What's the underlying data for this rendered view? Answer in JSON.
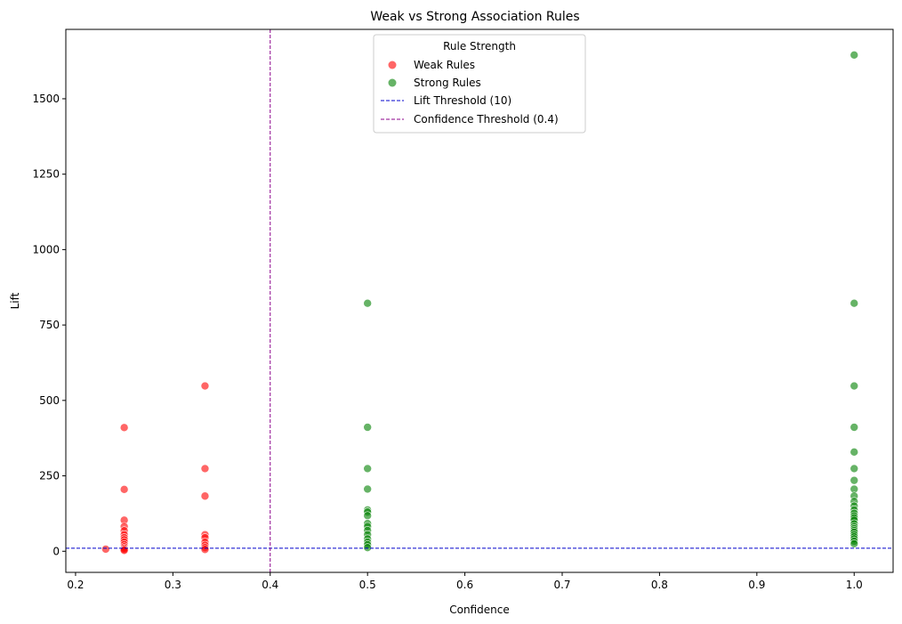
{
  "chart_data": {
    "type": "scatter",
    "title": "Weak vs Strong Association Rules",
    "xlabel": "Confidence",
    "ylabel": "Lift",
    "xlim": [
      0.19,
      1.04
    ],
    "ylim": [
      -70,
      1730
    ],
    "xticks": [
      0.2,
      0.3,
      0.4,
      0.5,
      0.6,
      0.7,
      0.8,
      0.9,
      1.0
    ],
    "xtick_labels": [
      "0.2",
      "0.3",
      "0.4",
      "0.5",
      "0.6",
      "0.7",
      "0.8",
      "0.9",
      "1.0"
    ],
    "yticks": [
      0,
      250,
      500,
      750,
      1000,
      1250,
      1500
    ],
    "ytick_labels": [
      "0",
      "250",
      "500",
      "750",
      "1000",
      "1250",
      "1500"
    ],
    "grid": false,
    "legend": {
      "title": "Rule Strength",
      "placement": "upper-center",
      "entries": [
        "Weak Rules",
        "Strong Rules",
        "Lift Threshold (10)",
        "Confidence Threshold (0.4)"
      ]
    },
    "series": [
      {
        "name": "Weak Rules",
        "color": "#ff0000",
        "points": [
          [
            0.231,
            7
          ],
          [
            0.25,
            410
          ],
          [
            0.25,
            205
          ],
          [
            0.25,
            103
          ],
          [
            0.25,
            82
          ],
          [
            0.25,
            68
          ],
          [
            0.25,
            55
          ],
          [
            0.25,
            45
          ],
          [
            0.25,
            38
          ],
          [
            0.25,
            30
          ],
          [
            0.25,
            22
          ],
          [
            0.25,
            15
          ],
          [
            0.25,
            10
          ],
          [
            0.25,
            6
          ],
          [
            0.25,
            3
          ],
          [
            0.333,
            548
          ],
          [
            0.333,
            274
          ],
          [
            0.333,
            183
          ],
          [
            0.333,
            55
          ],
          [
            0.333,
            45
          ],
          [
            0.333,
            30
          ],
          [
            0.333,
            20
          ],
          [
            0.333,
            12
          ],
          [
            0.333,
            6
          ]
        ]
      },
      {
        "name": "Strong Rules",
        "color": "#008000",
        "points": [
          [
            0.5,
            822
          ],
          [
            0.5,
            411
          ],
          [
            0.5,
            274
          ],
          [
            0.5,
            206
          ],
          [
            0.5,
            137
          ],
          [
            0.5,
            130
          ],
          [
            0.5,
            118
          ],
          [
            0.5,
            92
          ],
          [
            0.5,
            82
          ],
          [
            0.5,
            69
          ],
          [
            0.5,
            55
          ],
          [
            0.5,
            41
          ],
          [
            0.5,
            30
          ],
          [
            0.5,
            22
          ],
          [
            0.5,
            12
          ],
          [
            1.0,
            1645
          ],
          [
            1.0,
            822
          ],
          [
            1.0,
            548
          ],
          [
            1.0,
            411
          ],
          [
            1.0,
            329
          ],
          [
            1.0,
            274
          ],
          [
            1.0,
            235
          ],
          [
            1.0,
            206
          ],
          [
            1.0,
            183
          ],
          [
            1.0,
            165
          ],
          [
            1.0,
            150
          ],
          [
            1.0,
            137
          ],
          [
            1.0,
            126
          ],
          [
            1.0,
            117
          ],
          [
            1.0,
            110
          ],
          [
            1.0,
            103
          ],
          [
            1.0,
            91
          ],
          [
            1.0,
            82
          ],
          [
            1.0,
            75
          ],
          [
            1.0,
            69
          ],
          [
            1.0,
            63
          ],
          [
            1.0,
            55
          ],
          [
            1.0,
            48
          ],
          [
            1.0,
            41
          ],
          [
            1.0,
            33
          ],
          [
            1.0,
            25
          ]
        ]
      }
    ],
    "reference_lines": [
      {
        "name": "Lift Threshold (10)",
        "orientation": "horizontal",
        "value": 10,
        "color": "#0000cc",
        "style": "dashed"
      },
      {
        "name": "Confidence Threshold (0.4)",
        "orientation": "vertical",
        "value": 0.4,
        "color": "#8b008b",
        "style": "dashed"
      }
    ]
  }
}
